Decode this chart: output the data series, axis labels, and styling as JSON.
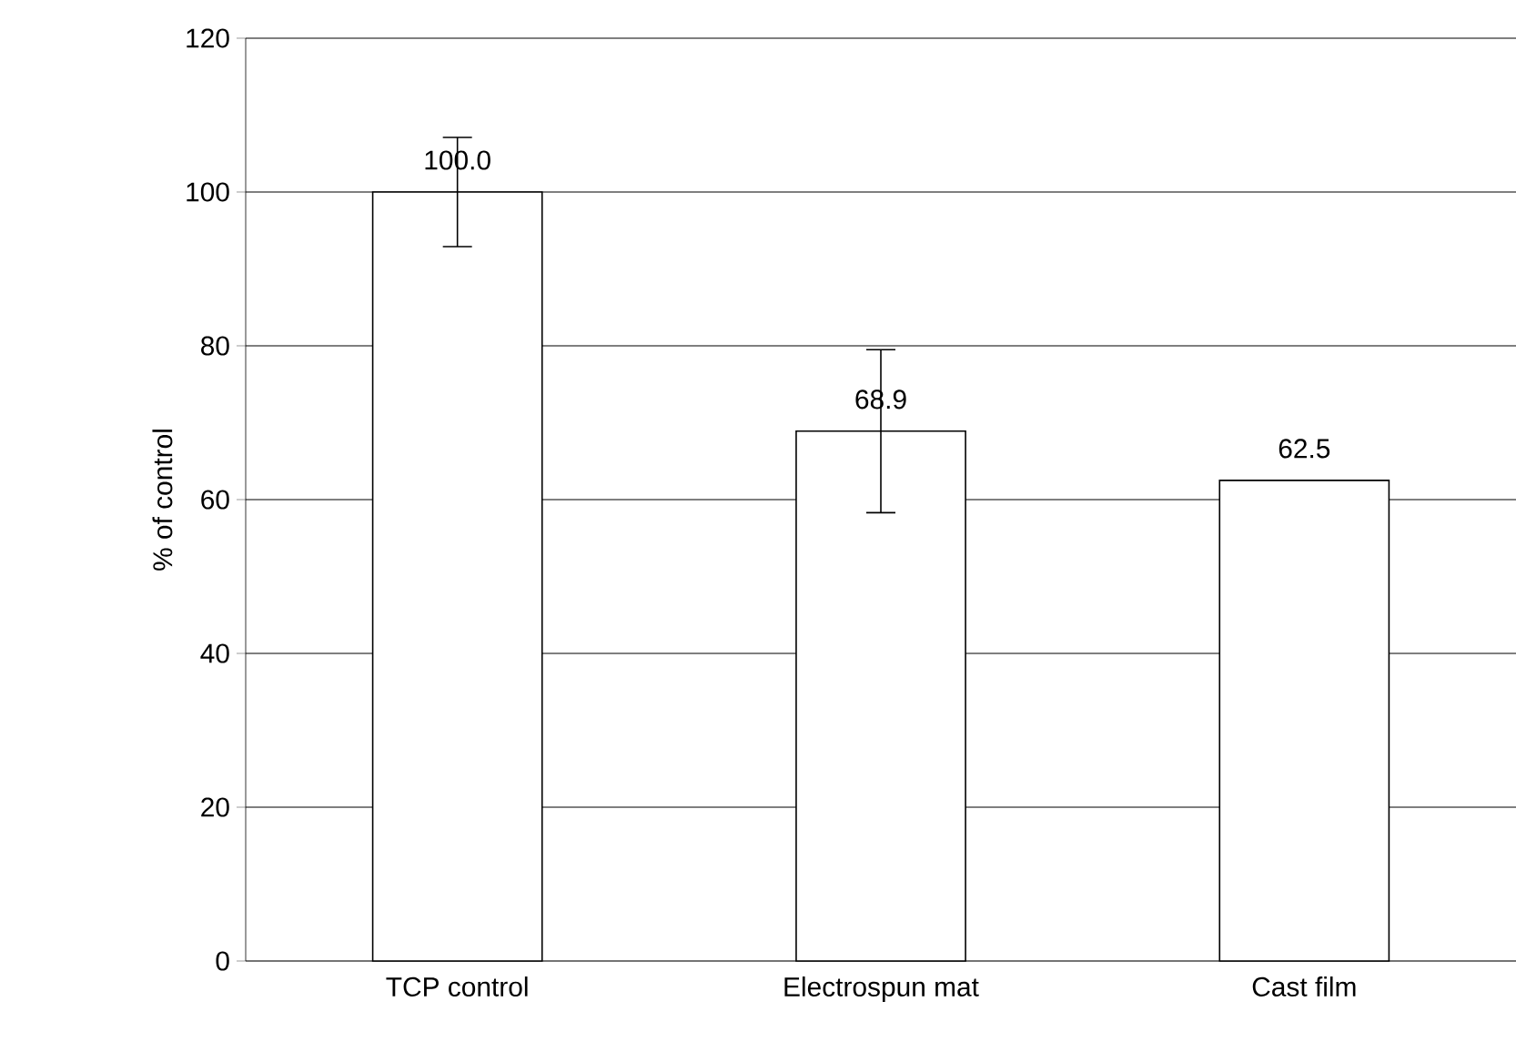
{
  "chart_data": {
    "type": "bar",
    "ylabel": "% of control",
    "categories": [
      "TCP control",
      "Electrospun mat",
      "Cast film"
    ],
    "values": [
      100.0,
      68.9,
      62.5
    ],
    "errors": [
      7.1,
      10.6,
      null
    ],
    "color": "#ffffff",
    "value_labels": [
      "100.0",
      "68.9",
      "62.5"
    ],
    "ylim": [
      0,
      120
    ],
    "yticks": [
      0,
      20,
      40,
      60,
      80,
      100,
      120
    ],
    "grid": "y"
  }
}
